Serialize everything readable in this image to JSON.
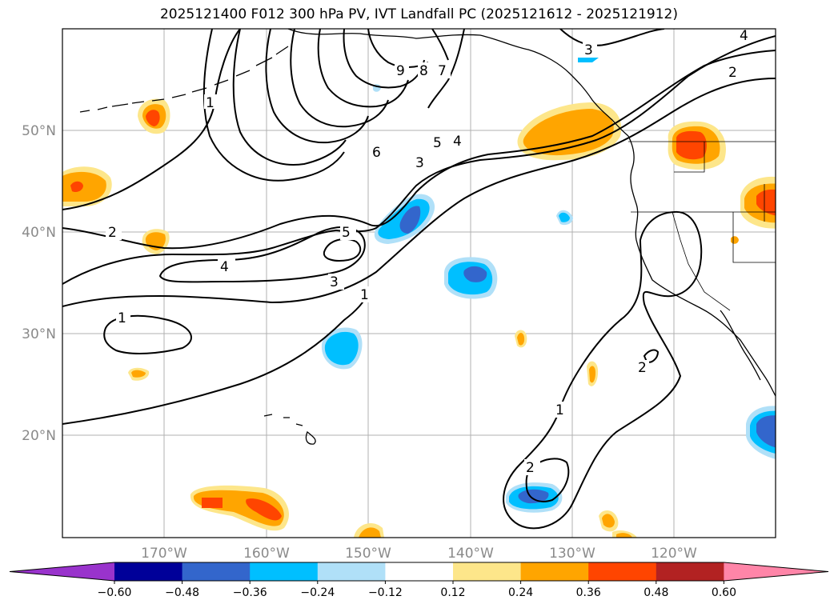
{
  "title": "2025121400 F012 300 hPa PV, IVT Landfall PC (2025121612 - 2025121912)",
  "lat_labels": [
    "50°N",
    "40°N",
    "30°N",
    "20°N"
  ],
  "lon_labels": [
    "170°W",
    "160°W",
    "150°W",
    "140°W",
    "130°W",
    "120°W"
  ],
  "colorbar": {
    "labels": [
      "−0.60",
      "−0.48",
      "−0.36",
      "−0.24",
      "−0.12",
      "0.12",
      "0.24",
      "0.36",
      "0.48",
      "0.60"
    ],
    "colors": [
      "#9933cc",
      "#000099",
      "#3366cc",
      "#00bfff",
      "#b0e0f8",
      "#ffffff",
      "#fde68a",
      "#ffa500",
      "#ff4500",
      "#b22222",
      "#ff85a8"
    ]
  },
  "contour_labels": [
    "1",
    "2",
    "3",
    "4",
    "5",
    "6",
    "7",
    "8",
    "9"
  ],
  "fill_colors": {
    "pos_light": "#fde68a",
    "pos_mid": "#ffa500",
    "pos_high": "#ff4500",
    "neg_light": "#b0e0f8",
    "neg_mid": "#00bfff",
    "neg_high": "#3366cc"
  }
}
